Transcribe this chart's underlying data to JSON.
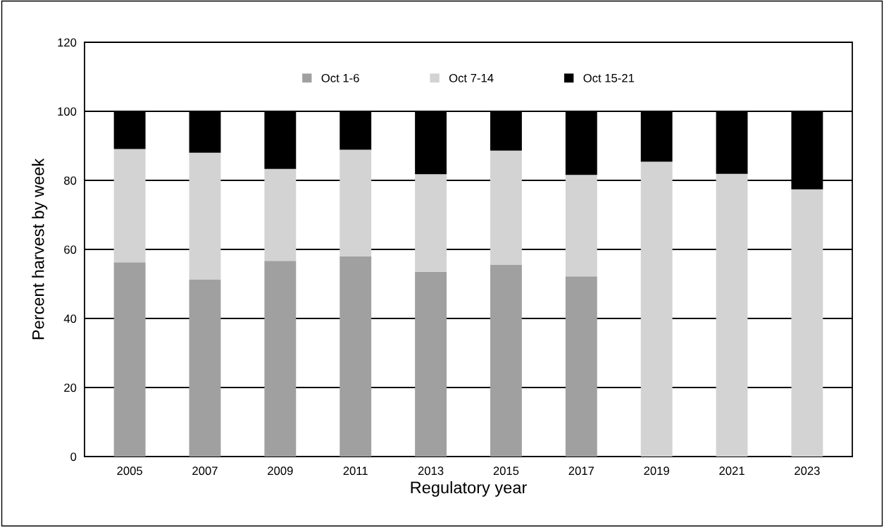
{
  "chart_data": {
    "type": "bar",
    "stacked": true,
    "xlabel": "Regulatory year",
    "ylabel": "Percent harvest by week",
    "categories": [
      "2005",
      "2007",
      "2009",
      "2011",
      "2013",
      "2015",
      "2017",
      "2019",
      "2021",
      "2023"
    ],
    "series": [
      {
        "name": "Oct 1-6",
        "color": "#a0a0a0",
        "values": [
          56.3,
          51.2,
          56.7,
          58.0,
          53.5,
          55.5,
          52.2,
          0,
          0,
          0
        ]
      },
      {
        "name": "Oct 7-14",
        "color": "#d3d3d3",
        "values": [
          32.8,
          36.8,
          26.6,
          30.9,
          28.3,
          33.1,
          29.4,
          85.4,
          81.9,
          77.4
        ]
      },
      {
        "name": "Oct 15-21",
        "color": "#000000",
        "values": [
          10.9,
          12.0,
          16.7,
          11.1,
          18.2,
          11.4,
          18.4,
          14.6,
          18.1,
          22.6
        ]
      }
    ],
    "ylim": [
      0,
      120
    ],
    "yticks": [
      0,
      20,
      40,
      60,
      80,
      100,
      120
    ],
    "grid": "y",
    "legend": "top"
  }
}
